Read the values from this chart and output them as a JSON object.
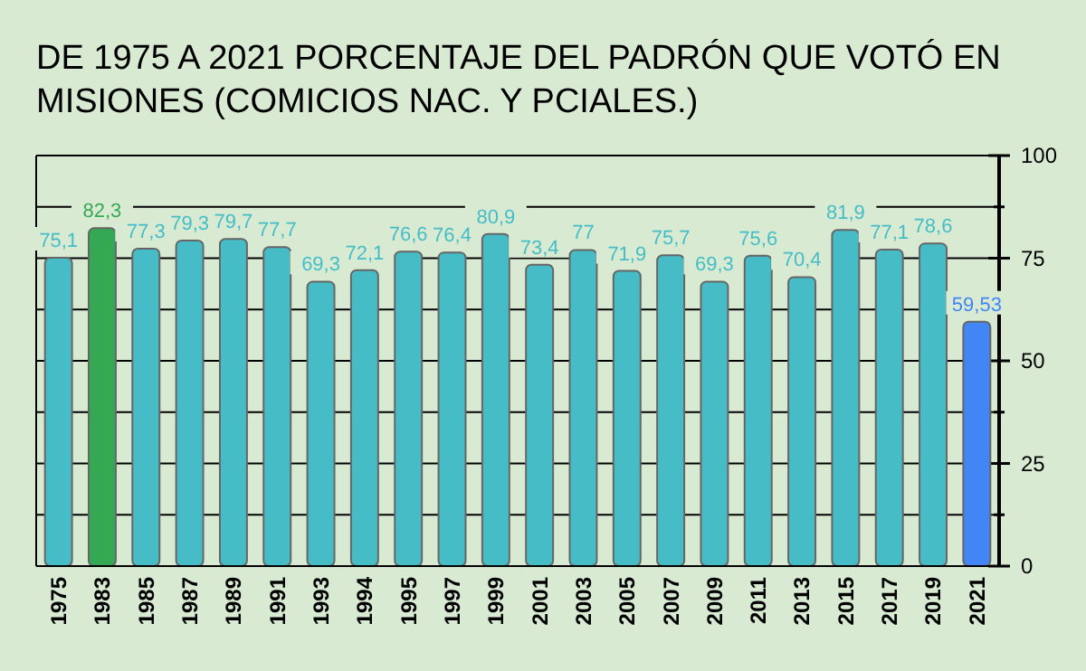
{
  "chart_data": {
    "type": "bar",
    "title": "DE 1975 A 2021 PORCENTAJE DEL PADRÓN QUE VOTÓ EN MISIONES (COMICIOS NAC. Y PCIALES.)",
    "categories": [
      "1975",
      "1983",
      "1985",
      "1987",
      "1989",
      "1991",
      "1993",
      "1994",
      "1995",
      "1997",
      "1999",
      "2001",
      "2003",
      "2005",
      "2007",
      "2009",
      "2011",
      "2013",
      "2015",
      "2017",
      "2019",
      "2021"
    ],
    "values": [
      75.1,
      82.3,
      77.3,
      79.3,
      79.7,
      77.7,
      69.3,
      72.1,
      76.6,
      76.4,
      80.9,
      73.4,
      77,
      71.9,
      75.7,
      69.3,
      75.6,
      70.4,
      81.9,
      77.1,
      78.6,
      59.53
    ],
    "value_labels": [
      "75,1",
      "82,3",
      "77,3",
      "79,3",
      "79,7",
      "77,7",
      "69,3",
      "72,1",
      "76,6",
      "76,4",
      "80,9",
      "73,4",
      "77",
      "71,9",
      "75,7",
      "69,3",
      "75,6",
      "70,4",
      "81,9",
      "77,1",
      "78,6",
      "59,53"
    ],
    "colors": [
      "#46bdc6",
      "#34a853",
      "#46bdc6",
      "#46bdc6",
      "#46bdc6",
      "#46bdc6",
      "#46bdc6",
      "#46bdc6",
      "#46bdc6",
      "#46bdc6",
      "#46bdc6",
      "#46bdc6",
      "#46bdc6",
      "#46bdc6",
      "#46bdc6",
      "#46bdc6",
      "#46bdc6",
      "#46bdc6",
      "#46bdc6",
      "#46bdc6",
      "#46bdc6",
      "#4285f4"
    ],
    "ylim": [
      0,
      100
    ],
    "yticks": [
      0,
      {
        "value": 12.5,
        "label": null
      },
      25,
      {
        "value": 37.5,
        "label": null
      },
      50,
      {
        "value": 62.5,
        "label": null
      },
      75,
      {
        "value": 87.5,
        "label": null
      },
      100
    ],
    "grid": "y"
  }
}
